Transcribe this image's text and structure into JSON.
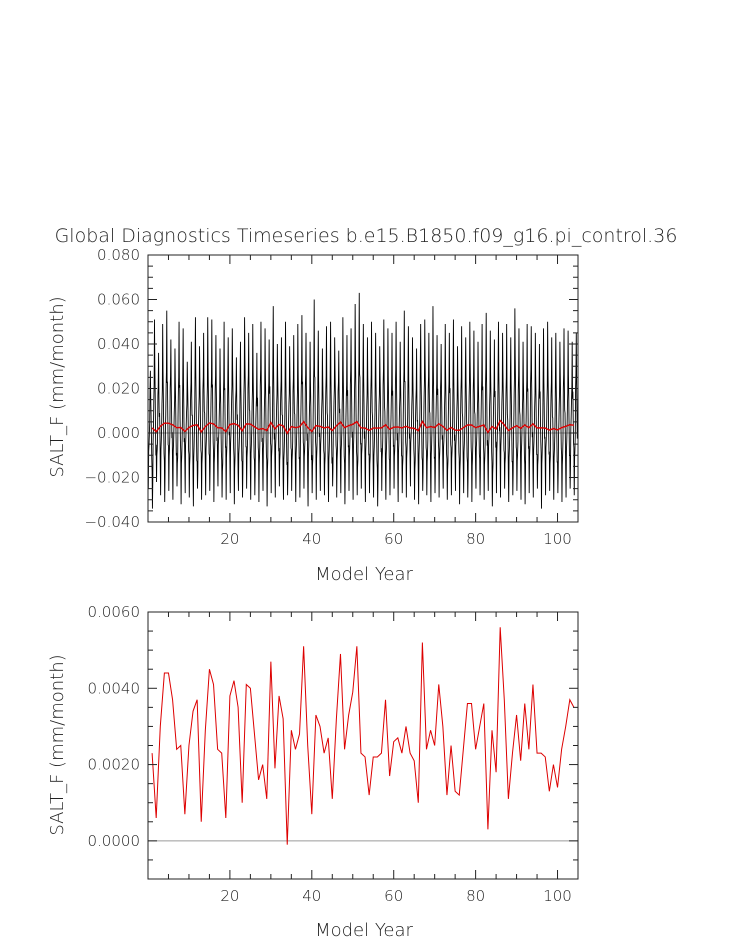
{
  "figure": {
    "title": "Global Diagnostics Timeseries b.e15.B1850.f09_g16.pi_control.36"
  },
  "chart_data": [
    {
      "type": "line",
      "xlabel": "Model Year",
      "ylabel": "SALT_F (mm/month)",
      "xlim": [
        0,
        105
      ],
      "ylim": [
        -0.04,
        0.08
      ],
      "x_ticks": [
        20,
        40,
        60,
        80,
        100
      ],
      "y_ticks": [
        -0.04,
        -0.02,
        0.0,
        0.02,
        0.04,
        0.06,
        0.08
      ],
      "y_tick_labels": [
        "−0.040",
        "−0.020",
        "0.000",
        "0.020",
        "0.040",
        "0.060",
        "0.080"
      ],
      "reference_line": 0,
      "series": [
        {
          "color": "#000000",
          "sampling": "monthly",
          "approx_peak_annual": [
            0.028,
            0.051,
            0.036,
            0.049,
            0.055,
            0.042,
            0.038,
            0.05,
            0.047,
            0.032,
            0.041,
            0.052,
            0.039,
            0.045,
            0.052,
            0.051,
            0.044,
            0.038,
            0.05,
            0.043,
            0.047,
            0.034,
            0.041,
            0.052,
            0.045,
            0.049,
            0.036,
            0.05,
            0.047,
            0.042,
            0.057,
            0.04,
            0.043,
            0.05,
            0.039,
            0.044,
            0.049,
            0.053,
            0.045,
            0.041,
            0.06,
            0.046,
            0.038,
            0.048,
            0.05,
            0.043,
            0.037,
            0.052,
            0.044,
            0.047,
            0.058,
            0.063,
            0.049,
            0.043,
            0.05,
            0.045,
            0.039,
            0.051,
            0.047,
            0.045,
            0.05,
            0.041,
            0.055,
            0.048,
            0.043,
            0.038,
            0.049,
            0.051,
            0.045,
            0.057,
            0.044,
            0.04,
            0.049,
            0.045,
            0.051,
            0.039,
            0.048,
            0.043,
            0.05,
            0.046,
            0.041,
            0.049,
            0.054,
            0.046,
            0.042,
            0.05,
            0.045,
            0.049,
            0.043,
            0.056,
            0.047,
            0.041,
            0.049,
            0.048,
            0.045,
            0.04,
            0.047,
            0.05,
            0.043,
            0.045,
            0.041,
            0.047,
            0.046,
            0.041,
            0.045
          ],
          "approx_trough_annual": [
            -0.025,
            -0.034,
            -0.022,
            -0.028,
            -0.031,
            -0.026,
            -0.03,
            -0.024,
            -0.032,
            -0.027,
            -0.029,
            -0.033,
            -0.025,
            -0.03,
            -0.028,
            -0.026,
            -0.031,
            -0.024,
            -0.029,
            -0.03,
            -0.027,
            -0.032,
            -0.026,
            -0.029,
            -0.025,
            -0.03,
            -0.028,
            -0.031,
            -0.026,
            -0.033,
            -0.027,
            -0.029,
            -0.024,
            -0.03,
            -0.028,
            -0.026,
            -0.031,
            -0.029,
            -0.025,
            -0.033,
            -0.027,
            -0.03,
            -0.026,
            -0.028,
            -0.031,
            -0.024,
            -0.029,
            -0.027,
            -0.032,
            -0.026,
            -0.03,
            -0.028,
            -0.025,
            -0.031,
            -0.027,
            -0.029,
            -0.033,
            -0.026,
            -0.03,
            -0.028,
            -0.025,
            -0.031,
            -0.027,
            -0.029,
            -0.024,
            -0.03,
            -0.032,
            -0.026,
            -0.028,
            -0.031,
            -0.027,
            -0.029,
            -0.025,
            -0.03,
            -0.028,
            -0.026,
            -0.032,
            -0.027,
            -0.029,
            -0.031,
            -0.025,
            -0.028,
            -0.03,
            -0.026,
            -0.033,
            -0.027,
            -0.029,
            -0.025,
            -0.031,
            -0.028,
            -0.026,
            -0.03,
            -0.032,
            -0.027,
            -0.029,
            -0.025,
            -0.034,
            -0.028,
            -0.026,
            -0.03,
            -0.027,
            -0.031,
            -0.029,
            -0.025,
            -0.028
          ]
        },
        {
          "color": "#dd0000",
          "sampling": "annual",
          "values_ref": "panel2_annual"
        }
      ]
    },
    {
      "type": "line",
      "xlabel": "Model Year",
      "ylabel": "SALT_F (mm/month)",
      "xlim": [
        0,
        105
      ],
      "ylim": [
        -0.001,
        0.006
      ],
      "x_ticks": [
        20,
        40,
        60,
        80,
        100
      ],
      "y_ticks": [
        0.0,
        0.002,
        0.004,
        0.006
      ],
      "y_tick_labels": [
        "0.0000",
        "0.0020",
        "0.0040",
        "0.0060"
      ],
      "reference_line": 0,
      "series": [
        {
          "color": "#dd0000",
          "x_start": 1,
          "x_step": 1,
          "values": [
            0.0023,
            0.0006,
            0.003,
            0.0044,
            0.0044,
            0.0037,
            0.0024,
            0.0025,
            0.0007,
            0.0025,
            0.0034,
            0.0037,
            0.0005,
            0.0029,
            0.0045,
            0.0041,
            0.0024,
            0.0023,
            0.0006,
            0.0038,
            0.0042,
            0.0035,
            0.001,
            0.0041,
            0.004,
            0.0028,
            0.0016,
            0.002,
            0.0011,
            0.0047,
            0.0019,
            0.0038,
            0.0032,
            -0.0001,
            0.0029,
            0.0024,
            0.0028,
            0.0051,
            0.0025,
            0.0007,
            0.0033,
            0.003,
            0.0023,
            0.0027,
            0.0011,
            0.0032,
            0.0049,
            0.0024,
            0.0033,
            0.0039,
            0.0051,
            0.0023,
            0.0022,
            0.0012,
            0.0022,
            0.0022,
            0.0023,
            0.0037,
            0.0017,
            0.0026,
            0.0027,
            0.0023,
            0.003,
            0.0023,
            0.0021,
            0.001,
            0.0052,
            0.0024,
            0.0029,
            0.0025,
            0.0041,
            0.003,
            0.0012,
            0.0025,
            0.0013,
            0.0012,
            0.0024,
            0.0036,
            0.0036,
            0.0024,
            0.003,
            0.0036,
            0.0003,
            0.0029,
            0.0018,
            0.0056,
            0.0037,
            0.0011,
            0.0023,
            0.0033,
            0.0021,
            0.0036,
            0.0024,
            0.0041,
            0.0023,
            0.0023,
            0.0022,
            0.0013,
            0.002,
            0.0014,
            0.0024,
            0.003,
            0.0037,
            0.0035
          ]
        }
      ]
    }
  ]
}
